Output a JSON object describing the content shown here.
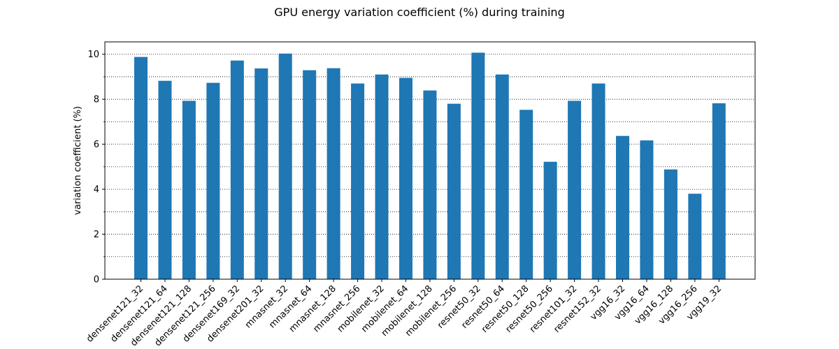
{
  "chart_data": {
    "type": "bar",
    "title": "GPU energy variation coefficient (%) during training",
    "xlabel": "",
    "ylabel": "variation coefficient (%)",
    "ylim": [
      0,
      10.55
    ],
    "yticks": [
      0,
      2,
      4,
      6,
      8,
      10
    ],
    "minor_yticks": [
      1,
      3,
      5,
      7,
      9
    ],
    "grid": "y-dotted-major-and-minor",
    "bar_color": "#1f77b4",
    "categories": [
      "densenet121_32",
      "densenet121_64",
      "densenet121_128",
      "densenet121_256",
      "densenet169_32",
      "densenet201_32",
      "mnasnet_32",
      "mnasnet_64",
      "mnasnet_128",
      "mnasnet_256",
      "mobilenet_32",
      "mobilenet_64",
      "mobilenet_128",
      "mobilenet_256",
      "resnet50_32",
      "resnet50_64",
      "resnet50_128",
      "resnet50_256",
      "resnet101_32",
      "resnet152_32",
      "vgg16_32",
      "vgg16_64",
      "vgg16_128",
      "vgg16_256",
      "vgg19_32"
    ],
    "values": [
      9.88,
      8.82,
      7.93,
      8.73,
      9.72,
      9.37,
      10.03,
      9.29,
      9.38,
      8.7,
      9.1,
      8.95,
      8.39,
      7.8,
      10.07,
      9.1,
      7.53,
      5.22,
      7.93,
      8.7,
      6.37,
      6.17,
      4.88,
      3.8,
      7.82
    ]
  }
}
